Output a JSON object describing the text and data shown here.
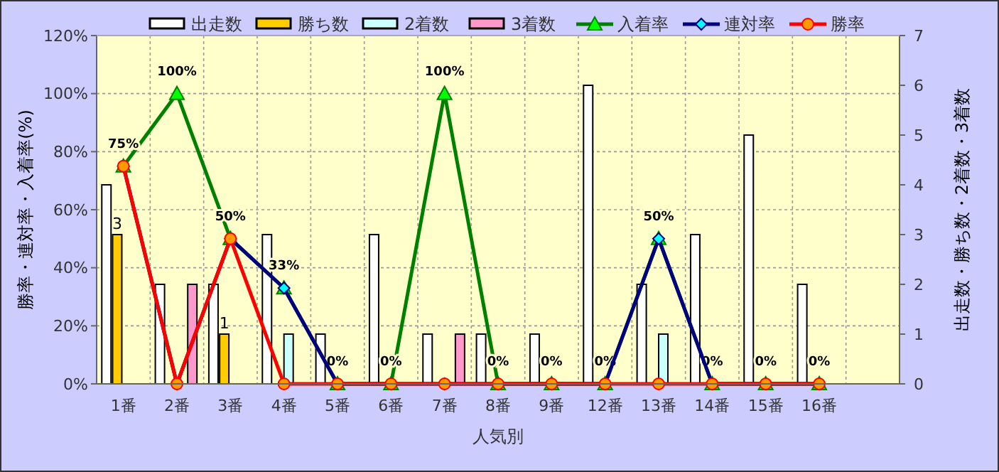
{
  "chart_data": {
    "type": "bar",
    "xlabel": "人気別",
    "ylabel": "勝率・連対率・入着率(%)",
    "y2label": "出走数・勝ち数・2着数・3着数",
    "categories": [
      "1番",
      "2番",
      "3番",
      "4番",
      "5番",
      "6番",
      "7番",
      "8番",
      "9番",
      "12番",
      "13番",
      "14番",
      "15番",
      "16番",
      null
    ],
    "ylim": [
      0,
      120
    ],
    "yticks": [
      {
        "value": 0,
        "label": "0%"
      },
      {
        "value": 20,
        "label": "20%"
      },
      {
        "value": 40,
        "label": "40%"
      },
      {
        "value": 60,
        "label": "60%"
      },
      {
        "value": 80,
        "label": "80%"
      },
      {
        "value": 100,
        "label": "100%"
      },
      {
        "value": 120,
        "label": "120%"
      }
    ],
    "y2lim": [
      0,
      7
    ],
    "y2ticks": [
      0,
      1,
      2,
      3,
      4,
      5,
      6,
      7
    ],
    "grid": true,
    "legend": "top",
    "series": [
      {
        "name": "出走数",
        "type": "bar",
        "axis": "y2",
        "color": "#ffffff",
        "values": [
          4,
          2,
          2,
          3,
          1,
          3,
          1,
          1,
          1,
          6,
          2,
          3,
          5,
          2,
          null
        ]
      },
      {
        "name": "勝ち数",
        "type": "bar",
        "axis": "y2",
        "color": "#ffcc00",
        "values": [
          3,
          0,
          1,
          0,
          0,
          0,
          0,
          0,
          0,
          0,
          0,
          0,
          0,
          0,
          null
        ],
        "value_labels": [
          "3",
          null,
          "1",
          null,
          null,
          null,
          null,
          null,
          null,
          null,
          null,
          null,
          null,
          null,
          null
        ]
      },
      {
        "name": "2着数",
        "type": "bar",
        "axis": "y2",
        "color": "#ccffff",
        "values": [
          0,
          0,
          0,
          1,
          0,
          0,
          0,
          0,
          0,
          0,
          1,
          0,
          0,
          0,
          null
        ]
      },
      {
        "name": "3着数",
        "type": "bar",
        "axis": "y2",
        "color": "#ff99cc",
        "values": [
          0,
          2,
          0,
          0,
          0,
          0,
          1,
          0,
          0,
          0,
          0,
          0,
          0,
          0,
          null
        ]
      },
      {
        "name": "入着率",
        "type": "line",
        "color": "#008000",
        "marker": "triangle",
        "values": [
          75,
          100,
          50,
          33,
          0,
          0,
          100,
          0,
          0,
          0,
          50,
          0,
          0,
          0,
          null
        ],
        "value_labels": [
          "75%",
          "100%",
          "50%",
          "33%",
          "0%",
          "0%",
          "100%",
          "0%",
          "0%",
          "0%",
          "50%",
          "0%",
          "0%",
          "0%",
          null
        ]
      },
      {
        "name": "連対率",
        "type": "line",
        "color": "#000080",
        "marker": "diamond",
        "values": [
          75,
          0,
          50,
          33,
          0,
          0,
          0,
          0,
          0,
          0,
          50,
          0,
          0,
          0,
          null
        ]
      },
      {
        "name": "勝率",
        "type": "line",
        "color": "#ff0000",
        "marker": "circle",
        "values": [
          75,
          0,
          50,
          0,
          0,
          0,
          0,
          0,
          0,
          0,
          0,
          0,
          0,
          0,
          null
        ]
      }
    ]
  }
}
